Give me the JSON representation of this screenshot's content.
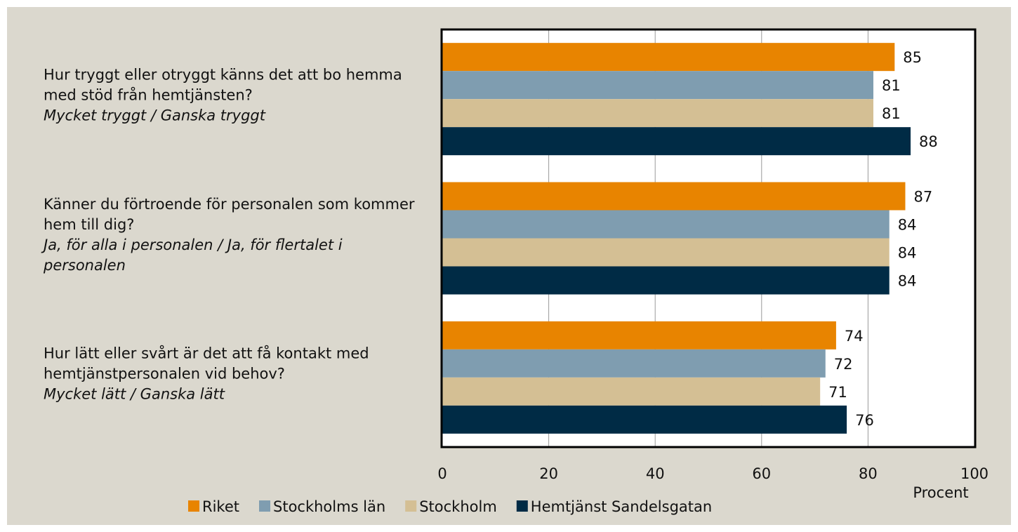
{
  "chart_data": {
    "type": "bar",
    "orientation": "horizontal",
    "categories": [
      "Hur tryggt eller otryggt känns det att bo hemma med stöd från hemtjänsten?",
      "Känner du förtroende för personalen som kommer hem till dig?",
      "Hur lätt eller svårt är det att få kontakt med hemtjänstpersonalen vid behov?"
    ],
    "category_notes": [
      "Mycket tryggt / Ganska tryggt",
      "Ja, för alla i personalen / Ja, för flertalet i personalen",
      "Mycket lätt / Ganska lätt"
    ],
    "series": [
      {
        "name": "Riket",
        "color": "#e88400",
        "values": [
          85,
          87,
          74
        ]
      },
      {
        "name": "Stockholms län",
        "color": "#7f9db0",
        "values": [
          81,
          84,
          72
        ]
      },
      {
        "name": "Stockholm",
        "color": "#d4bf94",
        "values": [
          81,
          84,
          71
        ]
      },
      {
        "name": "Hemtjänst Sandelsgatan",
        "color": "#002b45",
        "values": [
          88,
          84,
          76
        ]
      }
    ],
    "x_label": "Procent",
    "xlim": [
      0,
      100
    ],
    "xticks": [
      0,
      20,
      40,
      60,
      80,
      100
    ],
    "grid": true,
    "legend": "bottom"
  }
}
